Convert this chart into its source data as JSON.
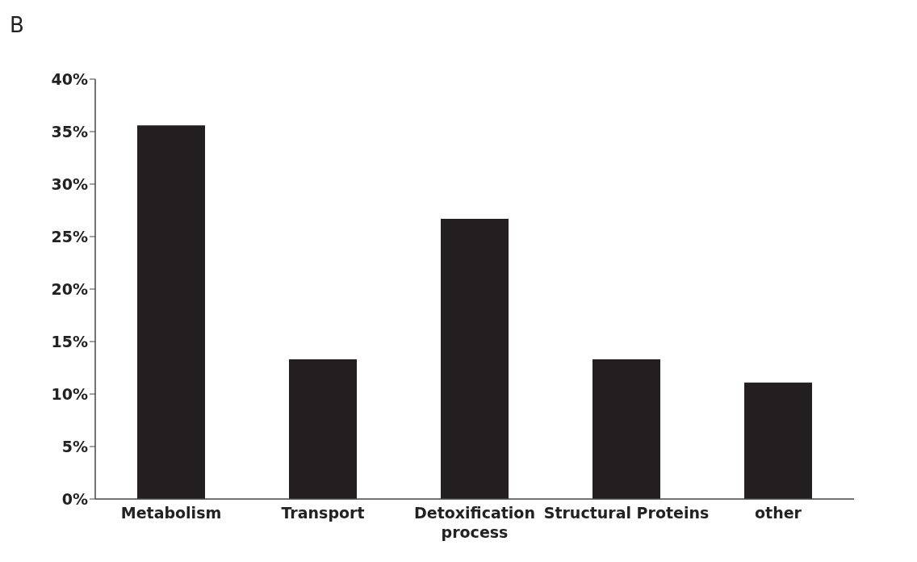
{
  "chart_data": {
    "type": "bar",
    "annotations": [
      "B"
    ],
    "categories": [
      "Metabolism",
      "Transport",
      "Detoxification process",
      "Structural Proteins",
      "other"
    ],
    "values": [
      35.6,
      13.3,
      26.7,
      13.3,
      11.1
    ],
    "color": "#231f20",
    "ylim": [
      0,
      40
    ],
    "yticks": [
      {
        "value": 0,
        "label": "0%"
      },
      {
        "value": 5,
        "label": "5%"
      },
      {
        "value": 10,
        "label": "10%"
      },
      {
        "value": 15,
        "label": "15%"
      },
      {
        "value": 20,
        "label": "20%"
      },
      {
        "value": 25,
        "label": "25%"
      },
      {
        "value": 30,
        "label": "30%"
      },
      {
        "value": 35,
        "label": "35%"
      },
      {
        "value": 40,
        "label": "40%"
      }
    ],
    "grid": false,
    "legend": false
  }
}
